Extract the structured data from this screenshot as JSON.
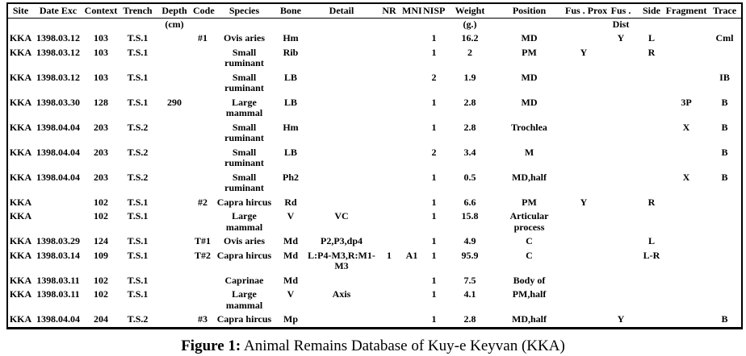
{
  "page": {
    "background": "#ffffff",
    "text_color": "#000000",
    "border_color": "#000000"
  },
  "table": {
    "headers": [
      {
        "line1": "Site",
        "line2": ""
      },
      {
        "line1": "Date Exc",
        "line2": ""
      },
      {
        "line1": "Context",
        "line2": ""
      },
      {
        "line1": "Trench",
        "line2": ""
      },
      {
        "line1": "Depth",
        "line2": "(cm)"
      },
      {
        "line1": "Code",
        "line2": ""
      },
      {
        "line1": "Species",
        "line2": ""
      },
      {
        "line1": "Bone",
        "line2": ""
      },
      {
        "line1": "Detail",
        "line2": ""
      },
      {
        "line1": "NR",
        "line2": ""
      },
      {
        "line1": "MNI",
        "line2": ""
      },
      {
        "line1": "NISP",
        "line2": ""
      },
      {
        "line1": "Weight",
        "line2": "(g.)"
      },
      {
        "line1": "Position",
        "line2": ""
      },
      {
        "line1": "Fus . Prox",
        "line2": ""
      },
      {
        "line1": "Fus .",
        "line2": "Dist"
      },
      {
        "line1": "Side",
        "line2": ""
      },
      {
        "line1": "Fragment",
        "line2": ""
      },
      {
        "line1": "Trace",
        "line2": ""
      }
    ],
    "rows": [
      [
        "KKA",
        "1398.03.12",
        "103",
        "T.S.1",
        "",
        "#1",
        "Ovis aries",
        "Hm",
        "",
        "",
        "",
        "1",
        "16.2",
        "MD",
        "",
        "Y",
        "L",
        "",
        "Cml"
      ],
      [
        "KKA",
        "1398.03.12",
        "103",
        "T.S.1",
        "",
        "",
        "Small ruminant",
        "Rib",
        "",
        "",
        "",
        "1",
        "2",
        "PM",
        "Y",
        "",
        "R",
        "",
        ""
      ],
      [
        "KKA",
        "1398.03.12",
        "103",
        "T.S.1",
        "",
        "",
        "Small ruminant",
        "LB",
        "",
        "",
        "",
        "2",
        "1.9",
        "MD",
        "",
        "",
        "",
        "",
        "IB"
      ],
      [
        "KKA",
        "1398.03.30",
        "128",
        "T.S.1",
        "290",
        "",
        "Large mammal",
        "LB",
        "",
        "",
        "",
        "1",
        "2.8",
        "MD",
        "",
        "",
        "",
        "3P",
        "B"
      ],
      [
        "KKA",
        "1398.04.04",
        "203",
        "T.S.2",
        "",
        "",
        "Small ruminant",
        "Hm",
        "",
        "",
        "",
        "1",
        "2.8",
        "Trochlea",
        "",
        "",
        "",
        "X",
        "B"
      ],
      [
        "KKA",
        "1398.04.04",
        "203",
        "T.S.2",
        "",
        "",
        "Small ruminant",
        "LB",
        "",
        "",
        "",
        "2",
        "3.4",
        "M",
        "",
        "",
        "",
        "",
        "B"
      ],
      [
        "KKA",
        "1398.04.04",
        "203",
        "T.S.2",
        "",
        "",
        "Small ruminant",
        "Ph2",
        "",
        "",
        "",
        "1",
        "0.5",
        "MD,half",
        "",
        "",
        "",
        "X",
        "B"
      ],
      [
        "KKA",
        "",
        "102",
        "T.S.1",
        "",
        "#2",
        "Capra hircus",
        "Rd",
        "",
        "",
        "",
        "1",
        "6.6",
        "PM",
        "Y",
        "",
        "R",
        "",
        ""
      ],
      [
        "KKA",
        "",
        "102",
        "T.S.1",
        "",
        "",
        "Large mammal",
        "V",
        "VC",
        "",
        "",
        "1",
        "15.8",
        "Articular process",
        "",
        "",
        "",
        "",
        ""
      ],
      [
        "KKA",
        "1398.03.29",
        "124",
        "T.S.1",
        "",
        "T#1",
        "Ovis aries",
        "Md",
        "P2,P3,dp4",
        "",
        "",
        "1",
        "4.9",
        "C",
        "",
        "",
        "L",
        "",
        ""
      ],
      [
        "KKA",
        "1398.03.14",
        "109",
        "T.S.1",
        "",
        "T#2",
        "Capra hircus",
        "Md",
        "L:P4-M3,R:M1-M3",
        "1",
        "A1",
        "1",
        "95.9",
        "C",
        "",
        "",
        "L-R",
        "",
        ""
      ],
      [
        "KKA",
        "1398.03.11",
        "102",
        "T.S.1",
        "",
        "",
        "Caprinae",
        "Md",
        "",
        "",
        "",
        "1",
        "7.5",
        "Body of",
        "",
        "",
        "",
        "",
        ""
      ],
      [
        "KKA",
        "1398.03.11",
        "102",
        "T.S.1",
        "",
        "",
        "Large mammal",
        "V",
        "Axis",
        "",
        "",
        "1",
        "4.1",
        "PM,half",
        "",
        "",
        "",
        "",
        ""
      ],
      [
        "KKA",
        "1398.04.04",
        "204",
        "T.S.2",
        "",
        "#3",
        "Capra hircus",
        "Mp",
        "",
        "",
        "",
        "1",
        "2.8",
        "MD,half",
        "",
        "Y",
        "",
        "",
        "B"
      ]
    ]
  },
  "caption": {
    "label": "Figure 1:",
    "text": "Animal Remains Database of Kuy-e Keyvan (KKA)"
  }
}
